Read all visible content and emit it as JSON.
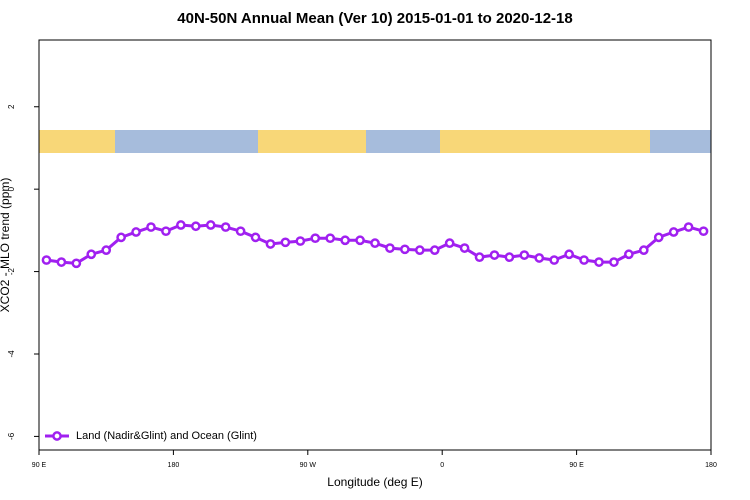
{
  "chart_data": {
    "type": "line",
    "title": "40N-50N Annual Mean (Ver 10)   2015-01-01 to 2020-12-18",
    "x_label": "Longitude (deg E)",
    "y_label": "XCO2 - MLO trend (ppm)",
    "x": [
      95,
      105,
      115,
      125,
      135,
      145,
      155,
      165,
      175,
      185,
      195,
      205,
      215,
      225,
      235,
      245,
      255,
      265,
      275,
      285,
      295,
      305,
      315,
      325,
      335,
      345,
      355,
      365,
      375,
      385,
      395,
      405,
      415,
      425,
      435,
      445,
      455,
      465,
      475,
      485,
      495,
      505,
      515,
      525,
      535
    ],
    "series": [
      {
        "name": "Land (Nadir&Glint) and Ocean (Glint)",
        "color": "#a020f0",
        "values": [
          -1.72,
          -1.77,
          -1.8,
          -1.58,
          -1.48,
          -1.17,
          -1.04,
          -0.92,
          -1.02,
          -0.87,
          -0.9,
          -0.87,
          -0.92,
          -1.02,
          -1.17,
          -1.33,
          -1.29,
          -1.26,
          -1.19,
          -1.19,
          -1.24,
          -1.24,
          -1.31,
          -1.43,
          -1.46,
          -1.48,
          -1.48,
          -1.31,
          -1.43,
          -1.65,
          -1.6,
          -1.65,
          -1.6,
          -1.67,
          -1.72,
          -1.58,
          -1.72,
          -1.77,
          -1.77,
          -1.58,
          -1.48,
          -1.17,
          -1.04,
          -0.92,
          -1.02
        ]
      }
    ],
    "xlim": [
      90,
      540
    ],
    "xticks": [
      {
        "value": 90,
        "label": "90 E"
      },
      180,
      {
        "value": 270,
        "label": "90 W"
      },
      {
        "value": 360,
        "label": "0"
      },
      {
        "value": 450,
        "label": "90 E"
      },
      {
        "value": 540,
        "label": "180"
      }
    ],
    "ylim": [
      -6.33,
      3.62
    ],
    "yticks": [
      2,
      0,
      -2,
      -4,
      -6
    ],
    "grid": false,
    "legend": "bottomleft"
  }
}
